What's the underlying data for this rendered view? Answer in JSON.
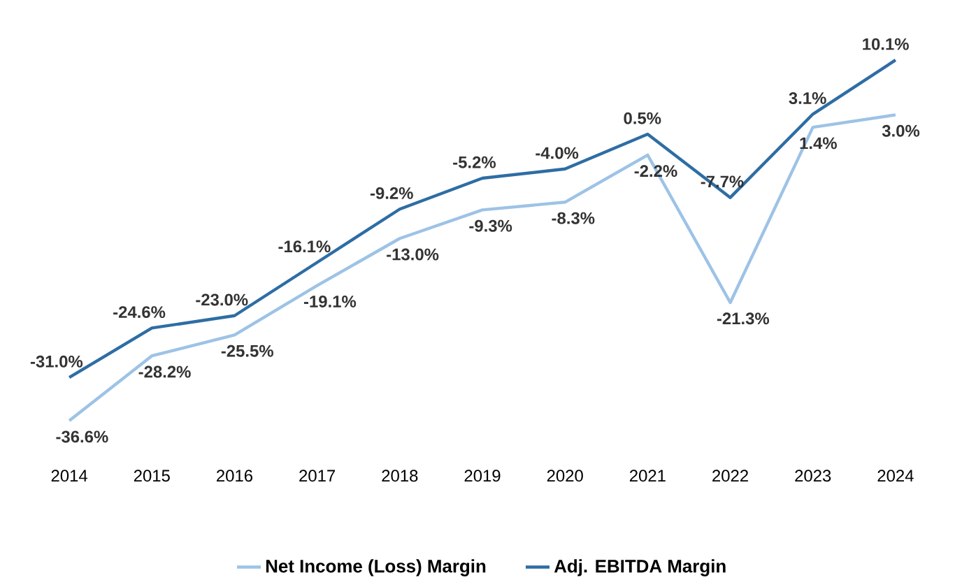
{
  "chart_data": {
    "type": "line",
    "categories": [
      "2014",
      "2015",
      "2016",
      "2017",
      "2018",
      "2019",
      "2020",
      "2021",
      "2022",
      "2023",
      "2024"
    ],
    "series": [
      {
        "name": "Net Income (Loss) Margin",
        "color": "#9dc3e6",
        "values": [
          -36.6,
          -28.2,
          -25.5,
          -19.1,
          -13.0,
          -9.3,
          -8.3,
          -2.2,
          -21.3,
          1.4,
          3.0
        ],
        "value_labels": [
          "-36.6%",
          "-28.2%",
          "-25.5%",
          "-19.1%",
          "-13.0%",
          "-9.3%",
          "-8.3%",
          "-2.2%",
          "-21.3%",
          "1.4%",
          "3.0%"
        ]
      },
      {
        "name": "Adj. EBITDA Margin",
        "color": "#2e6da4",
        "values": [
          -31.0,
          -24.6,
          -23.0,
          -16.1,
          -9.2,
          -5.2,
          -4.0,
          0.5,
          -7.7,
          3.1,
          10.1
        ],
        "value_labels": [
          "-31.0%",
          "-24.6%",
          "-23.0%",
          "-16.1%",
          "-9.2%",
          "-5.2%",
          "-4.0%",
          "0.5%",
          "-7.7%",
          "3.1%",
          "10.1%"
        ]
      }
    ],
    "legend": "bottom",
    "tick_labels": "x",
    "marker": "none",
    "line_style": "solid"
  }
}
